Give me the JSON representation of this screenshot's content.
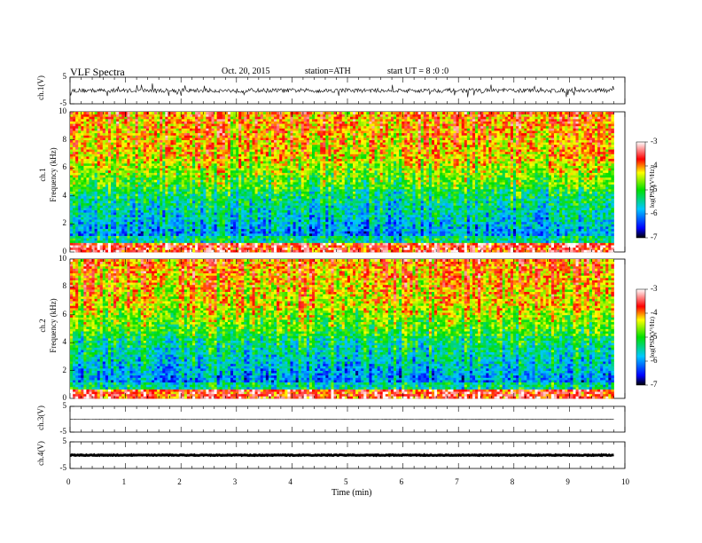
{
  "header": {
    "title": "VLF Spectra",
    "date": "Oct. 20, 2015",
    "station": "station=ATH",
    "start": "start UT = 8 :0 :0"
  },
  "colorbar": {
    "label": "log(PSD(V²/Hz)",
    "ticks": [
      "-3",
      "-4",
      "-5",
      "-6",
      "-7"
    ],
    "range": [
      -7,
      -3
    ]
  },
  "chart_data": [
    {
      "type": "line",
      "name_label": "ch.1(V)",
      "ylim": [
        -5,
        5
      ],
      "y_ticks": [
        "5",
        "-5"
      ],
      "xlim": [
        0,
        10
      ],
      "description_values": {
        "baseline": 0,
        "noise_amplitude": 1.5
      }
    },
    {
      "type": "heatmap",
      "ylabel": "ch.1\nFrequency (kHz)",
      "ylabel_ch": "ch.1",
      "ylabel_freq": "Frequency (kHz)",
      "ylim": [
        0,
        10
      ],
      "y_ticks": [
        "10",
        "8",
        "6",
        "4",
        "2",
        "0"
      ],
      "xlim": [
        0,
        9.8
      ],
      "zlim": [
        -7,
        -3
      ]
    },
    {
      "type": "heatmap",
      "ylabel_ch": "ch.2",
      "ylabel_freq": "Frequency (kHz)",
      "ylim": [
        0,
        10
      ],
      "y_ticks": [
        "10",
        "8",
        "6",
        "4",
        "2",
        "0"
      ],
      "xlim": [
        0,
        9.8
      ],
      "zlim": [
        -7,
        -3
      ]
    },
    {
      "type": "line",
      "name_label": "ch.3(V)",
      "ylim": [
        -5,
        5
      ],
      "y_ticks": [
        "5",
        "-5"
      ],
      "xlim": [
        0,
        10
      ]
    },
    {
      "type": "line",
      "name_label": "ch.4(V)",
      "ylim": [
        -5,
        5
      ],
      "y_ticks": [
        "5",
        "-5"
      ],
      "xlim": [
        0,
        10
      ]
    }
  ],
  "x_axis": {
    "label": "Time (min)",
    "ticks": [
      "0",
      "1",
      "2",
      "3",
      "4",
      "5",
      "6",
      "7",
      "8",
      "9",
      "10"
    ],
    "range": [
      0,
      10
    ]
  }
}
